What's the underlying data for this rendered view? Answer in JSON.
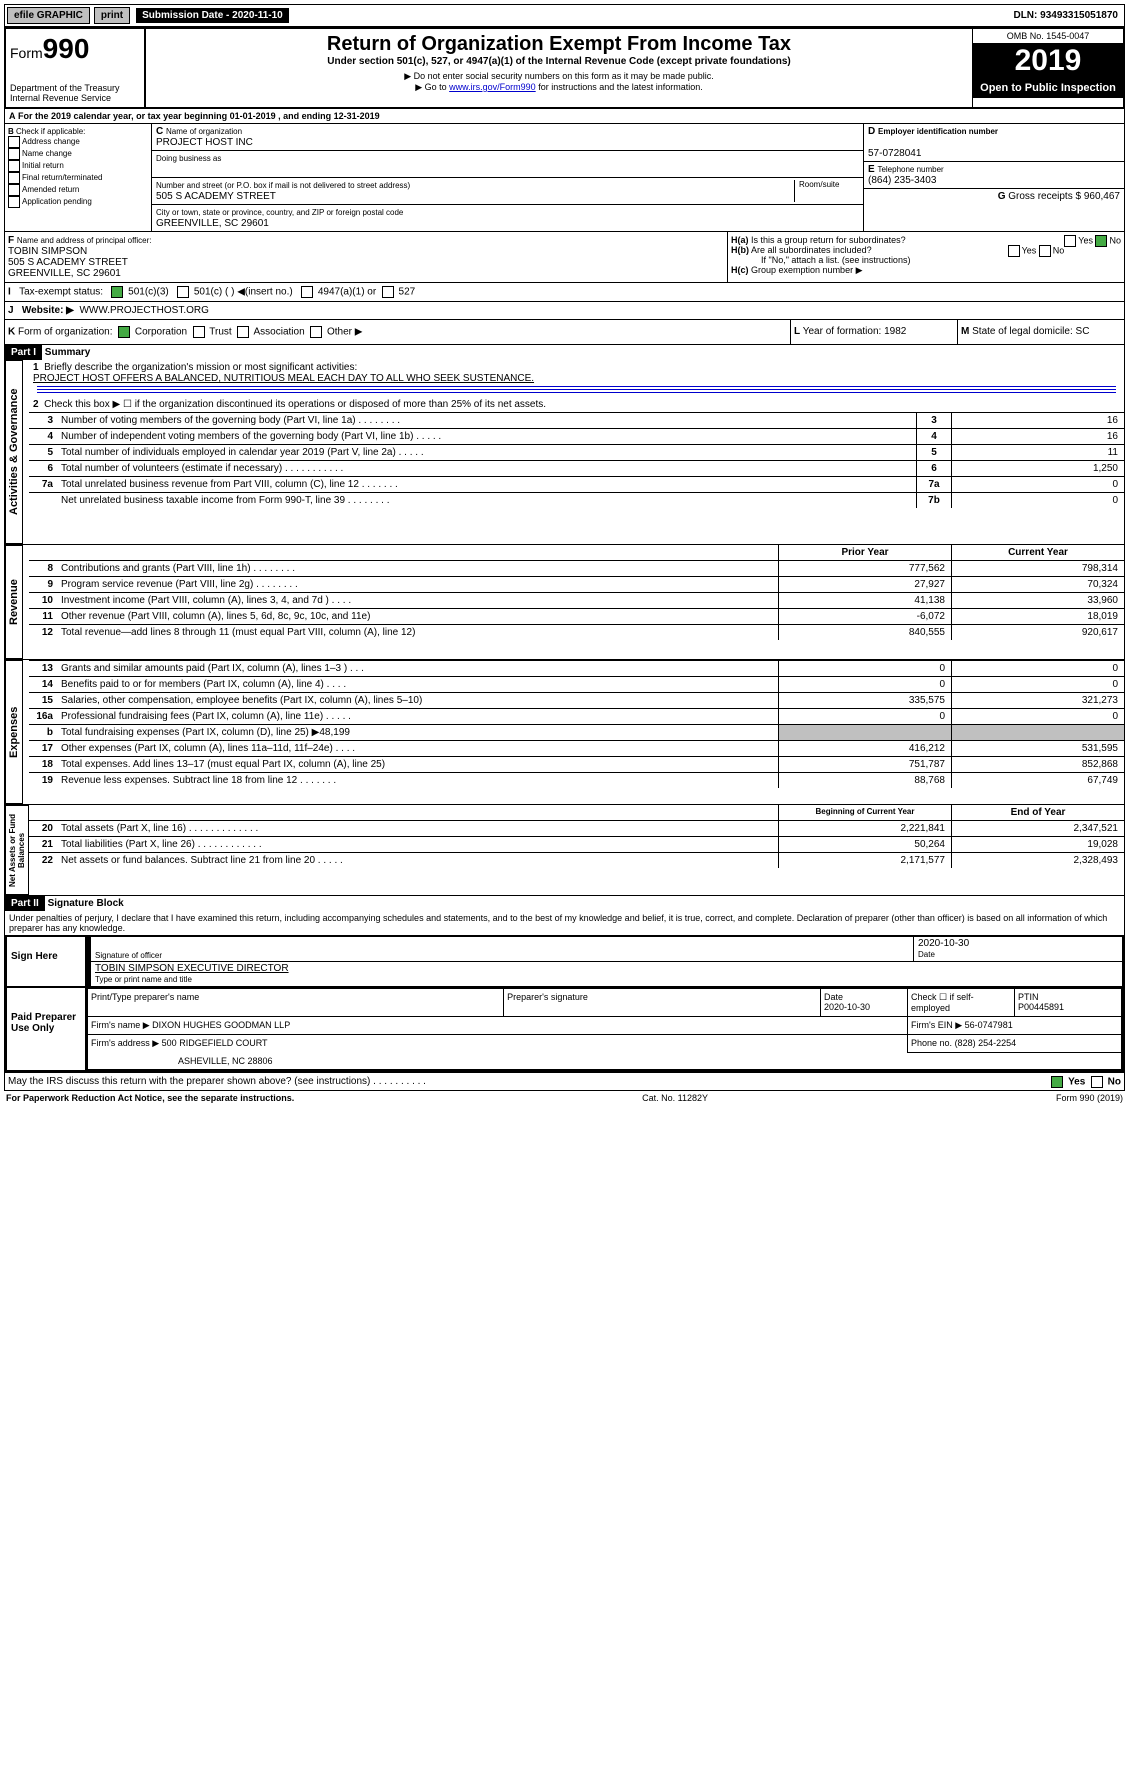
{
  "topbar": {
    "efile": "efile GRAPHIC",
    "print": "print",
    "sublabel": "Submission Date - 2020-11-10",
    "dln": "DLN: 93493315051870"
  },
  "header": {
    "form": "Form",
    "num": "990",
    "dept": "Department of the Treasury",
    "irs": "Internal Revenue Service",
    "title": "Return of Organization Exempt From Income Tax",
    "sub1": "Under section 501(c), 527, or 4947(a)(1) of the Internal Revenue Code (except private foundations)",
    "sub2": "▶ Do not enter social security numbers on this form as it may be made public.",
    "sub3a": "▶ Go to ",
    "sub3link": "www.irs.gov/Form990",
    "sub3b": " for instructions and the latest information.",
    "omb": "OMB No. 1545-0047",
    "year": "2019",
    "inspect": "Open to Public Inspection"
  },
  "A": {
    "text": "For the 2019 calendar year, or tax year beginning 01-01-2019   , and ending 12-31-2019"
  },
  "B": {
    "label": "Check if applicable:",
    "items": [
      "Address change",
      "Name change",
      "Initial return",
      "Final return/terminated",
      "Amended return",
      "Application pending"
    ]
  },
  "C": {
    "nameLabel": "Name of organization",
    "name": "PROJECT HOST INC",
    "dbaLabel": "Doing business as",
    "dba": "",
    "addrLabel": "Number and street (or P.O. box if mail is not delivered to street address)",
    "room": "Room/suite",
    "addr": "505 S ACADEMY STREET",
    "cityLabel": "City or town, state or province, country, and ZIP or foreign postal code",
    "city": "GREENVILLE, SC  29601"
  },
  "D": {
    "label": "Employer identification number",
    "val": "57-0728041"
  },
  "E": {
    "label": "Telephone number",
    "val": "(864) 235-3403"
  },
  "G": {
    "label": "Gross receipts $",
    "val": "960,467"
  },
  "F": {
    "label": "Name and address of principal officer:",
    "name": "TOBIN SIMPSON",
    "addr": "505 S ACADEMY STREET",
    "city": "GREENVILLE, SC  29601"
  },
  "H": {
    "a": "Is this a group return for subordinates?",
    "b": "Are all subordinates included?",
    "bnote": "If \"No,\" attach a list. (see instructions)",
    "c": "Group exemption number ▶",
    "yes": "Yes",
    "no": "No"
  },
  "I": {
    "label": "Tax-exempt status:",
    "c3": "501(c)(3)",
    "c": "501(c) (  ) ◀(insert no.)",
    "a1": "4947(a)(1) or",
    "s527": "527"
  },
  "J": {
    "label": "Website: ▶",
    "val": "WWW.PROJECTHOST.ORG"
  },
  "K": {
    "label": "Form of organization:",
    "corp": "Corporation",
    "trust": "Trust",
    "assoc": "Association",
    "other": "Other ▶"
  },
  "L": {
    "label": "Year of formation:",
    "val": "1982"
  },
  "M": {
    "label": "State of legal domicile:",
    "val": "SC"
  },
  "part1": {
    "bar": "Part I",
    "title": "Summary",
    "l1": "Briefly describe the organization's mission or most significant activities:",
    "mission": "PROJECT HOST OFFERS A BALANCED, NUTRITIOUS MEAL EACH DAY TO ALL WHO SEEK SUSTENANCE.",
    "l2": "Check this box ▶ ☐  if the organization discontinued its operations or disposed of more than 25% of its net assets.",
    "sideA": "Activities & Governance",
    "sideR": "Revenue",
    "sideE": "Expenses",
    "sideN": "Net Assets or Fund Balances",
    "rows": [
      {
        "n": "3",
        "t": "Number of voting members of the governing body (Part VI, line 1a)  .  .  .  .  .  .  .  .",
        "box": "3",
        "v": "16"
      },
      {
        "n": "4",
        "t": "Number of independent voting members of the governing body (Part VI, line 1b)  .  .  .  .  .",
        "box": "4",
        "v": "16"
      },
      {
        "n": "5",
        "t": "Total number of individuals employed in calendar year 2019 (Part V, line 2a)  .  .  .  .  .",
        "box": "5",
        "v": "11"
      },
      {
        "n": "6",
        "t": "Total number of volunteers (estimate if necessary)  .  .  .  .  .  .  .  .  .  .  .",
        "box": "6",
        "v": "1,250"
      },
      {
        "n": "7a",
        "t": "Total unrelated business revenue from Part VIII, column (C), line 12  .  .  .  .  .  .  .",
        "box": "7a",
        "v": "0"
      },
      {
        "n": " ",
        "t": "Net unrelated business taxable income from Form 990-T, line 39  .  .  .  .  .  .  .  .",
        "box": "7b",
        "v": "0"
      }
    ],
    "hdrP": "Prior Year",
    "hdrC": "Current Year",
    "rev": [
      {
        "n": "8",
        "t": "Contributions and grants (Part VIII, line 1h)  .  .  .  .  .  .  .  .",
        "p": "777,562",
        "c": "798,314"
      },
      {
        "n": "9",
        "t": "Program service revenue (Part VIII, line 2g)  .  .  .  .  .  .  .  .",
        "p": "27,927",
        "c": "70,324"
      },
      {
        "n": "10",
        "t": "Investment income (Part VIII, column (A), lines 3, 4, and 7d )  .  .  .  .",
        "p": "41,138",
        "c": "33,960"
      },
      {
        "n": "11",
        "t": "Other revenue (Part VIII, column (A), lines 5, 6d, 8c, 9c, 10c, and 11e)",
        "p": "-6,072",
        "c": "18,019"
      },
      {
        "n": "12",
        "t": "Total revenue—add lines 8 through 11 (must equal Part VIII, column (A), line 12)",
        "p": "840,555",
        "c": "920,617"
      }
    ],
    "exp": [
      {
        "n": "13",
        "t": "Grants and similar amounts paid (Part IX, column (A), lines 1–3 )  .  .  .",
        "p": "0",
        "c": "0"
      },
      {
        "n": "14",
        "t": "Benefits paid to or for members (Part IX, column (A), line 4)  .  .  .  .",
        "p": "0",
        "c": "0"
      },
      {
        "n": "15",
        "t": "Salaries, other compensation, employee benefits (Part IX, column (A), lines 5–10)",
        "p": "335,575",
        "c": "321,273"
      },
      {
        "n": "16a",
        "t": "Professional fundraising fees (Part IX, column (A), line 11e)  .  .  .  .  .",
        "p": "0",
        "c": "0"
      },
      {
        "n": "b",
        "t": "Total fundraising expenses (Part IX, column (D), line 25) ▶48,199",
        "p": "",
        "c": "",
        "shade": true
      },
      {
        "n": "17",
        "t": "Other expenses (Part IX, column (A), lines 11a–11d, 11f–24e)  .  .  .  .",
        "p": "416,212",
        "c": "531,595"
      },
      {
        "n": "18",
        "t": "Total expenses. Add lines 13–17 (must equal Part IX, column (A), line 25)",
        "p": "751,787",
        "c": "852,868"
      },
      {
        "n": "19",
        "t": "Revenue less expenses. Subtract line 18 from line 12  .  .  .  .  .  .  .",
        "p": "88,768",
        "c": "67,749"
      }
    ],
    "hdrB": "Beginning of Current Year",
    "hdrE": "End of Year",
    "net": [
      {
        "n": "20",
        "t": "Total assets (Part X, line 16)  .  .  .  .  .  .  .  .  .  .  .  .  .",
        "p": "2,221,841",
        "c": "2,347,521"
      },
      {
        "n": "21",
        "t": "Total liabilities (Part X, line 26)  .  .  .  .  .  .  .  .  .  .  .  .",
        "p": "50,264",
        "c": "19,028"
      },
      {
        "n": "22",
        "t": "Net assets or fund balances. Subtract line 21 from line 20  .  .  .  .  .",
        "p": "2,171,577",
        "c": "2,328,493"
      }
    ]
  },
  "part2": {
    "bar": "Part II",
    "title": "Signature Block",
    "decl": "Under penalties of perjury, I declare that I have examined this return, including accompanying schedules and statements, and to the best of my knowledge and belief, it is true, correct, and complete. Declaration of preparer (other than officer) is based on all information of which preparer has any knowledge.",
    "sign": "Sign Here",
    "sigoff": "Signature of officer",
    "date": "2020-10-30",
    "datel": "Date",
    "offname": "TOBIN SIMPSON  EXECUTIVE DIRECTOR",
    "typel": "Type or print name and title",
    "paid": "Paid Preparer Use Only",
    "prepname": "Print/Type preparer's name",
    "prepsig": "Preparer's signature",
    "prepdate": "Date",
    "prepdatev": "2020-10-30",
    "check": "Check ☐ if self-employed",
    "ptin": "PTIN",
    "ptinv": "P00445891",
    "firm": "Firm's name    ▶",
    "firmv": "DIXON HUGHES GOODMAN LLP",
    "ein": "Firm's EIN ▶",
    "einv": "56-0747981",
    "addr": "Firm's address ▶",
    "addrv": "500 RIDGEFIELD COURT",
    "addrv2": "ASHEVILLE, NC  28806",
    "phone": "Phone no.",
    "phonev": "(828) 254-2254",
    "discuss": "May the IRS discuss this return with the preparer shown above? (see instructions)   .   .   .   .   .   .   .   .   .   .",
    "yes": "Yes",
    "no": "No"
  },
  "footer": {
    "l": "For Paperwork Reduction Act Notice, see the separate instructions.",
    "m": "Cat. No. 11282Y",
    "r": "Form 990 (2019)"
  }
}
